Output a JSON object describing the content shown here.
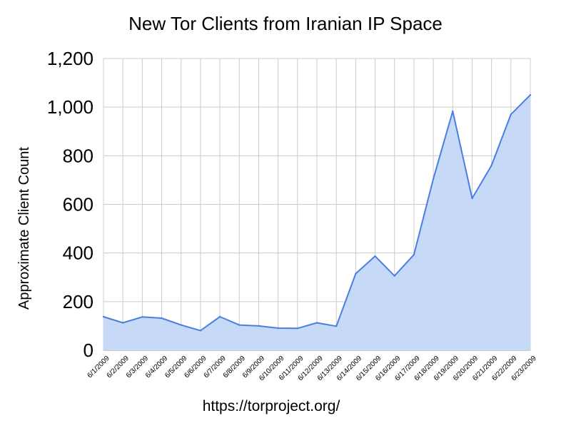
{
  "chart_data": {
    "type": "area",
    "title": "New Tor Clients from Iranian IP Space",
    "ylabel": "Approximate Client Count",
    "xlabel": "",
    "categories": [
      "6/1/2009",
      "6/2/2009",
      "6/3/2009",
      "6/4/2009",
      "6/5/2009",
      "6/6/2009",
      "6/7/2009",
      "6/8/2009",
      "6/9/2009",
      "6/10/2009",
      "6/11/2009",
      "6/12/2009",
      "6/13/2009",
      "6/14/2009",
      "6/15/2009",
      "6/16/2009",
      "6/17/2009",
      "6/18/2009",
      "6/19/2009",
      "6/20/2009",
      "6/21/2009",
      "6/22/2009",
      "6/23/2009"
    ],
    "values": [
      138,
      113,
      137,
      132,
      104,
      81,
      138,
      104,
      100,
      91,
      90,
      113,
      99,
      315,
      387,
      306,
      393,
      705,
      983,
      625,
      760,
      970,
      1050
    ],
    "ylim": [
      0,
      1200
    ],
    "yticks": [
      0,
      200,
      400,
      600,
      800,
      1000,
      1200
    ],
    "ytick_labels": [
      "0",
      "200",
      "400",
      "600",
      "800",
      "1,000",
      "1,200"
    ],
    "grid": true,
    "legend": "none",
    "line_color": "#4a7fe0",
    "fill_color": "#c6d9f7",
    "grid_color": "#cccccc"
  },
  "footer": {
    "url": "https://torproject.org/"
  }
}
